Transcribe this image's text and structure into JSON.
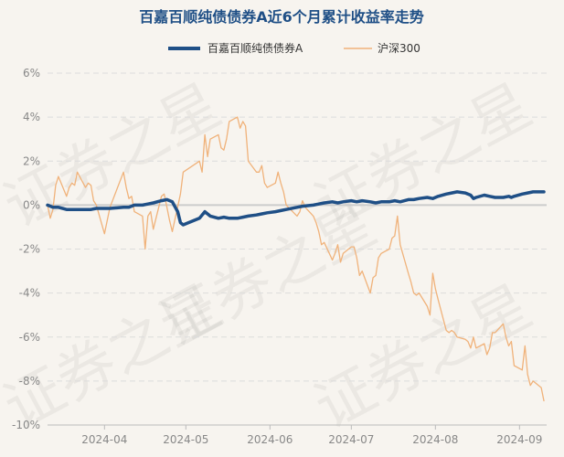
{
  "chart_data": {
    "type": "line",
    "title": "百嘉百顺纯债债券A近6个月累计收益率走势",
    "watermark": "证券之星",
    "xlabel": "",
    "ylabel": "",
    "ylim": [
      -10,
      6
    ],
    "yticks": [
      6,
      4,
      2,
      0,
      -2,
      -4,
      -6,
      -8,
      -10
    ],
    "ytick_labels": [
      "6%",
      "4%",
      "2%",
      "0%",
      "-2%",
      "-4%",
      "-6%",
      "-8%",
      "-10%"
    ],
    "x_range": [
      "2024-03-11",
      "2024-09-11"
    ],
    "xticks": [
      "2024-04-01",
      "2024-05-01",
      "2024-06-01",
      "2024-07-01",
      "2024-08-01",
      "2024-09-01"
    ],
    "xtick_labels": [
      "2024-04",
      "2024-05",
      "2024-06",
      "2024-07",
      "2024-08",
      "2024-09"
    ],
    "grid": "horizontal-dashed",
    "legend": "top-center",
    "series": [
      {
        "name": "百嘉百顺纯债债券A",
        "color": "#1f4f86",
        "points": [
          [
            "2024-03-11",
            0.0
          ],
          [
            "2024-03-13",
            -0.1
          ],
          [
            "2024-03-15",
            -0.1
          ],
          [
            "2024-03-18",
            -0.2
          ],
          [
            "2024-03-20",
            -0.2
          ],
          [
            "2024-03-22",
            -0.2
          ],
          [
            "2024-03-25",
            -0.2
          ],
          [
            "2024-03-27",
            -0.2
          ],
          [
            "2024-03-29",
            -0.15
          ],
          [
            "2024-04-01",
            -0.15
          ],
          [
            "2024-04-03",
            -0.15
          ],
          [
            "2024-04-08",
            -0.1
          ],
          [
            "2024-04-10",
            -0.1
          ],
          [
            "2024-04-12",
            0.0
          ],
          [
            "2024-04-15",
            0.0
          ],
          [
            "2024-04-17",
            0.05
          ],
          [
            "2024-04-19",
            0.1
          ],
          [
            "2024-04-22",
            0.2
          ],
          [
            "2024-04-24",
            0.25
          ],
          [
            "2024-04-26",
            0.15
          ],
          [
            "2024-04-28",
            -0.3
          ],
          [
            "2024-04-29",
            -0.8
          ],
          [
            "2024-04-30",
            -0.9
          ],
          [
            "2024-05-06",
            -0.6
          ],
          [
            "2024-05-08",
            -0.3
          ],
          [
            "2024-05-10",
            -0.5
          ],
          [
            "2024-05-13",
            -0.6
          ],
          [
            "2024-05-15",
            -0.55
          ],
          [
            "2024-05-17",
            -0.6
          ],
          [
            "2024-05-20",
            -0.6
          ],
          [
            "2024-05-22",
            -0.55
          ],
          [
            "2024-05-24",
            -0.5
          ],
          [
            "2024-05-27",
            -0.45
          ],
          [
            "2024-05-29",
            -0.4
          ],
          [
            "2024-05-31",
            -0.35
          ],
          [
            "2024-06-03",
            -0.3
          ],
          [
            "2024-06-05",
            -0.25
          ],
          [
            "2024-06-07",
            -0.2
          ],
          [
            "2024-06-11",
            -0.1
          ],
          [
            "2024-06-13",
            -0.05
          ],
          [
            "2024-06-17",
            0.0
          ],
          [
            "2024-06-19",
            0.05
          ],
          [
            "2024-06-21",
            0.1
          ],
          [
            "2024-06-24",
            0.15
          ],
          [
            "2024-06-26",
            0.1
          ],
          [
            "2024-06-28",
            0.15
          ],
          [
            "2024-07-01",
            0.2
          ],
          [
            "2024-07-03",
            0.15
          ],
          [
            "2024-07-05",
            0.2
          ],
          [
            "2024-07-08",
            0.15
          ],
          [
            "2024-07-10",
            0.1
          ],
          [
            "2024-07-12",
            0.15
          ],
          [
            "2024-07-15",
            0.15
          ],
          [
            "2024-07-17",
            0.2
          ],
          [
            "2024-07-19",
            0.15
          ],
          [
            "2024-07-22",
            0.25
          ],
          [
            "2024-07-24",
            0.25
          ],
          [
            "2024-07-26",
            0.3
          ],
          [
            "2024-07-29",
            0.35
          ],
          [
            "2024-07-31",
            0.3
          ],
          [
            "2024-08-02",
            0.4
          ],
          [
            "2024-08-05",
            0.5
          ],
          [
            "2024-08-07",
            0.55
          ],
          [
            "2024-08-09",
            0.6
          ],
          [
            "2024-08-12",
            0.55
          ],
          [
            "2024-08-14",
            0.45
          ],
          [
            "2024-08-15",
            0.3
          ],
          [
            "2024-08-16",
            0.35
          ],
          [
            "2024-08-19",
            0.45
          ],
          [
            "2024-08-21",
            0.4
          ],
          [
            "2024-08-23",
            0.35
          ],
          [
            "2024-08-26",
            0.35
          ],
          [
            "2024-08-28",
            0.4
          ],
          [
            "2024-08-29",
            0.35
          ],
          [
            "2024-08-30",
            0.4
          ],
          [
            "2024-09-02",
            0.5
          ],
          [
            "2024-09-04",
            0.55
          ],
          [
            "2024-09-06",
            0.6
          ],
          [
            "2024-09-09",
            0.6
          ],
          [
            "2024-09-10",
            0.6
          ]
        ]
      },
      {
        "name": "沪深300",
        "color": "#f0b27a",
        "points": [
          [
            "2024-03-11",
            0.0
          ],
          [
            "2024-03-12",
            -0.6
          ],
          [
            "2024-03-13",
            -0.2
          ],
          [
            "2024-03-14",
            0.9
          ],
          [
            "2024-03-15",
            1.3
          ],
          [
            "2024-03-18",
            0.4
          ],
          [
            "2024-03-19",
            0.8
          ],
          [
            "2024-03-20",
            1.0
          ],
          [
            "2024-03-21",
            0.9
          ],
          [
            "2024-03-22",
            1.5
          ],
          [
            "2024-03-25",
            0.8
          ],
          [
            "2024-03-26",
            1.0
          ],
          [
            "2024-03-27",
            0.9
          ],
          [
            "2024-03-28",
            0.2
          ],
          [
            "2024-03-29",
            0.0
          ],
          [
            "2024-04-01",
            -1.3
          ],
          [
            "2024-04-02",
            -0.7
          ],
          [
            "2024-04-03",
            -0.1
          ],
          [
            "2024-04-08",
            1.5
          ],
          [
            "2024-04-09",
            0.8
          ],
          [
            "2024-04-10",
            0.3
          ],
          [
            "2024-04-11",
            0.4
          ],
          [
            "2024-04-12",
            -0.3
          ],
          [
            "2024-04-15",
            -0.5
          ],
          [
            "2024-04-16",
            -2.0
          ],
          [
            "2024-04-17",
            -0.5
          ],
          [
            "2024-04-18",
            -0.3
          ],
          [
            "2024-04-19",
            -1.1
          ],
          [
            "2024-04-22",
            0.4
          ],
          [
            "2024-04-23",
            0.5
          ],
          [
            "2024-04-24",
            -0.1
          ],
          [
            "2024-04-25",
            -0.7
          ],
          [
            "2024-04-26",
            -1.2
          ],
          [
            "2024-04-29",
            0.5
          ],
          [
            "2024-04-30",
            1.5
          ],
          [
            "2024-05-06",
            2.0
          ],
          [
            "2024-05-07",
            1.5
          ],
          [
            "2024-05-08",
            3.2
          ],
          [
            "2024-05-09",
            2.2
          ],
          [
            "2024-05-10",
            3.0
          ],
          [
            "2024-05-13",
            3.2
          ],
          [
            "2024-05-14",
            2.6
          ],
          [
            "2024-05-15",
            2.5
          ],
          [
            "2024-05-16",
            3.0
          ],
          [
            "2024-05-17",
            3.8
          ],
          [
            "2024-05-20",
            4.0
          ],
          [
            "2024-05-21",
            3.5
          ],
          [
            "2024-05-22",
            3.8
          ],
          [
            "2024-05-23",
            3.6
          ],
          [
            "2024-05-24",
            2.0
          ],
          [
            "2024-05-27",
            1.5
          ],
          [
            "2024-05-28",
            1.5
          ],
          [
            "2024-05-29",
            1.8
          ],
          [
            "2024-05-30",
            1.0
          ],
          [
            "2024-05-31",
            0.8
          ],
          [
            "2024-06-03",
            1.0
          ],
          [
            "2024-06-04",
            1.5
          ],
          [
            "2024-06-05",
            1.0
          ],
          [
            "2024-06-06",
            0.6
          ],
          [
            "2024-06-07",
            0.0
          ],
          [
            "2024-06-11",
            -0.5
          ],
          [
            "2024-06-12",
            -0.3
          ],
          [
            "2024-06-13",
            0.2
          ],
          [
            "2024-06-14",
            -0.1
          ],
          [
            "2024-06-17",
            -0.5
          ],
          [
            "2024-06-18",
            -0.8
          ],
          [
            "2024-06-19",
            -1.2
          ],
          [
            "2024-06-20",
            -1.8
          ],
          [
            "2024-06-21",
            -1.7
          ],
          [
            "2024-06-24",
            -2.5
          ],
          [
            "2024-06-25",
            -2.2
          ],
          [
            "2024-06-26",
            -1.8
          ],
          [
            "2024-06-27",
            -2.6
          ],
          [
            "2024-06-28",
            -2.2
          ],
          [
            "2024-07-01",
            -1.9
          ],
          [
            "2024-07-02",
            -1.9
          ],
          [
            "2024-07-03",
            -2.4
          ],
          [
            "2024-07-04",
            -3.2
          ],
          [
            "2024-07-05",
            -3.0
          ],
          [
            "2024-07-08",
            -4.0
          ],
          [
            "2024-07-09",
            -3.3
          ],
          [
            "2024-07-10",
            -3.2
          ],
          [
            "2024-07-11",
            -2.4
          ],
          [
            "2024-07-12",
            -2.2
          ],
          [
            "2024-07-15",
            -2.0
          ],
          [
            "2024-07-16",
            -1.5
          ],
          [
            "2024-07-17",
            -1.4
          ],
          [
            "2024-07-18",
            -0.5
          ],
          [
            "2024-07-19",
            -1.8
          ],
          [
            "2024-07-22",
            -3.1
          ],
          [
            "2024-07-23",
            -3.5
          ],
          [
            "2024-07-24",
            -4.0
          ],
          [
            "2024-07-25",
            -4.1
          ],
          [
            "2024-07-26",
            -4.0
          ],
          [
            "2024-07-29",
            -4.6
          ],
          [
            "2024-07-30",
            -5.0
          ],
          [
            "2024-07-31",
            -3.1
          ],
          [
            "2024-08-01",
            -3.8
          ],
          [
            "2024-08-02",
            -4.3
          ],
          [
            "2024-08-05",
            -5.7
          ],
          [
            "2024-08-06",
            -5.8
          ],
          [
            "2024-08-07",
            -5.7
          ],
          [
            "2024-08-08",
            -5.8
          ],
          [
            "2024-08-09",
            -6.0
          ],
          [
            "2024-08-12",
            -6.1
          ],
          [
            "2024-08-13",
            -6.2
          ],
          [
            "2024-08-14",
            -6.5
          ],
          [
            "2024-08-15",
            -6.0
          ],
          [
            "2024-08-16",
            -6.5
          ],
          [
            "2024-08-19",
            -6.3
          ],
          [
            "2024-08-20",
            -6.8
          ],
          [
            "2024-08-21",
            -6.5
          ],
          [
            "2024-08-22",
            -5.8
          ],
          [
            "2024-08-23",
            -5.8
          ],
          [
            "2024-08-26",
            -5.4
          ],
          [
            "2024-08-27",
            -6.0
          ],
          [
            "2024-08-28",
            -6.4
          ],
          [
            "2024-08-29",
            -6.2
          ],
          [
            "2024-08-30",
            -7.3
          ],
          [
            "2024-09-02",
            -7.5
          ],
          [
            "2024-09-03",
            -6.4
          ],
          [
            "2024-09-04",
            -7.7
          ],
          [
            "2024-09-05",
            -8.2
          ],
          [
            "2024-09-06",
            -8.0
          ],
          [
            "2024-09-09",
            -8.3
          ],
          [
            "2024-09-10",
            -8.9
          ]
        ]
      }
    ]
  }
}
